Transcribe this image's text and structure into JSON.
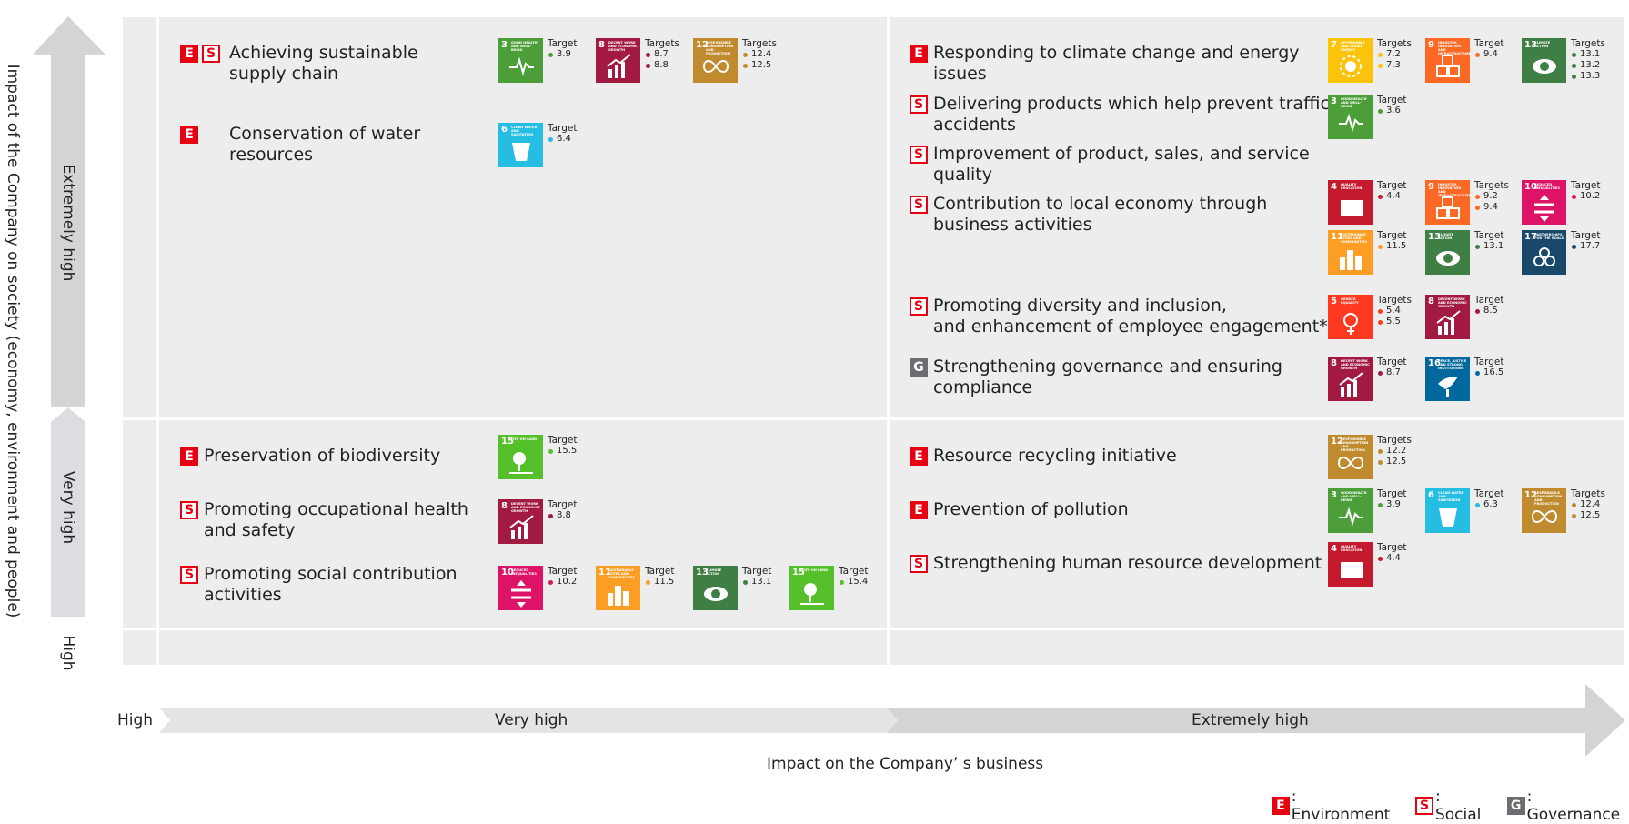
{
  "y_axis": {
    "title": "Impact of the Company on society (economy, environment and people)",
    "levels": [
      "Extremely high",
      "Very high",
      "High"
    ]
  },
  "x_axis": {
    "title": "Impact on the Company’ s business",
    "levels": [
      "High",
      "Very high",
      "Extremely high"
    ]
  },
  "legend": [
    {
      "code": "E",
      "label": ": Environment"
    },
    {
      "code": "S",
      "label": ": Social"
    },
    {
      "code": "G",
      "label": ": Governance"
    }
  ],
  "sdg_colors": {
    "3": "#4c9f38",
    "4": "#c5192d",
    "5": "#ff3a21",
    "6": "#26bde2",
    "7": "#fcc30b",
    "8": "#a21942",
    "9": "#fd6925",
    "10": "#dd1367",
    "11": "#fd9d24",
    "12": "#bf8b2e",
    "13": "#3f7e44",
    "15": "#56c02b",
    "16": "#00689d",
    "17": "#19486a"
  },
  "sdg_titles": {
    "3": "Good health and well-being",
    "4": "Quality education",
    "5": "Gender equality",
    "6": "Clean water and sanitation",
    "7": "Affordable and clean energy",
    "8": "Decent work and economic growth",
    "9": "Industry, innovation and infrastructure",
    "10": "Reduced inequalities",
    "11": "Sustainable cities and communities",
    "12": "Responsible consumption and production",
    "13": "Climate action",
    "15": "Life on land",
    "16": "Peace, justice and strong institutions",
    "17": "Partnerships for the goals"
  },
  "items": [
    {
      "codes": [
        "E",
        "S"
      ],
      "label": "Achieving sustainable\nsupply chain",
      "sdgs": [
        {
          "goal": "3",
          "head": "Target",
          "targets": [
            "3.9"
          ]
        },
        {
          "goal": "8",
          "head": "Targets",
          "targets": [
            "8.7",
            "8.8"
          ]
        },
        {
          "goal": "12",
          "head": "Targets",
          "targets": [
            "12.4",
            "12.5"
          ]
        }
      ]
    },
    {
      "codes": [
        "E"
      ],
      "label": "Conservation of water\nresources",
      "sdgs": [
        {
          "goal": "6",
          "head": "Target",
          "targets": [
            "6.4"
          ]
        }
      ]
    },
    {
      "codes": [
        "E"
      ],
      "label": "Responding to climate change and energy\nissues",
      "sdgs": [
        {
          "goal": "7",
          "head": "Targets",
          "targets": [
            "7.2",
            "7.3"
          ]
        },
        {
          "goal": "9",
          "head": "Target",
          "targets": [
            "9.4"
          ]
        },
        {
          "goal": "13",
          "head": "Targets",
          "targets": [
            "13.1",
            "13.2",
            "13.3"
          ]
        }
      ]
    },
    {
      "codes": [
        "S"
      ],
      "label": "Delivering products which help prevent traffic\naccidents",
      "sdgs": [
        {
          "goal": "3",
          "head": "Target",
          "targets": [
            "3.6"
          ]
        }
      ]
    },
    {
      "codes": [
        "S"
      ],
      "label": "Improvement of product, sales, and service\nquality",
      "sdgs": []
    },
    {
      "codes": [
        "S"
      ],
      "label": "Contribution to local economy through\nbusiness activities",
      "sdgs": [
        {
          "goal": "4",
          "head": "Target",
          "targets": [
            "4.4"
          ]
        },
        {
          "goal": "9",
          "head": "Targets",
          "targets": [
            "9.2",
            "9.4"
          ]
        },
        {
          "goal": "10",
          "head": "Target",
          "targets": [
            "10.2"
          ]
        },
        {
          "goal": "11",
          "head": "Target",
          "targets": [
            "11.5"
          ]
        },
        {
          "goal": "13",
          "head": "Target",
          "targets": [
            "13.1"
          ]
        },
        {
          "goal": "17",
          "head": "Target",
          "targets": [
            "17.7"
          ]
        }
      ]
    },
    {
      "codes": [
        "S"
      ],
      "label": "Promoting diversity and inclusion,\nand enhancement of employee engagement*",
      "sdgs": [
        {
          "goal": "5",
          "head": "Targets",
          "targets": [
            "5.4",
            "5.5"
          ]
        },
        {
          "goal": "8",
          "head": "Target",
          "targets": [
            "8.5"
          ]
        }
      ]
    },
    {
      "codes": [
        "G"
      ],
      "label": "Strengthening governance and ensuring\ncompliance",
      "sdgs": [
        {
          "goal": "8",
          "head": "Target",
          "targets": [
            "8.7"
          ]
        },
        {
          "goal": "16",
          "head": "Target",
          "targets": [
            "16.5"
          ]
        }
      ]
    },
    {
      "codes": [
        "E"
      ],
      "label": "Preservation of biodiversity",
      "sdgs": [
        {
          "goal": "15",
          "head": "Target",
          "targets": [
            "15.5"
          ]
        }
      ]
    },
    {
      "codes": [
        "S"
      ],
      "label": "Promoting occupational health\nand safety",
      "sdgs": [
        {
          "goal": "8",
          "head": "Target",
          "targets": [
            "8.8"
          ]
        }
      ]
    },
    {
      "codes": [
        "S"
      ],
      "label": "Promoting social contribution\nactivities",
      "sdgs": [
        {
          "goal": "10",
          "head": "Target",
          "targets": [
            "10.2"
          ]
        },
        {
          "goal": "11",
          "head": "Target",
          "targets": [
            "11.5"
          ]
        },
        {
          "goal": "13",
          "head": "Target",
          "targets": [
            "13.1"
          ]
        },
        {
          "goal": "15",
          "head": "Target",
          "targets": [
            "15.4"
          ]
        }
      ]
    },
    {
      "codes": [
        "E"
      ],
      "label": "Resource recycling initiative",
      "sdgs": [
        {
          "goal": "12",
          "head": "Targets",
          "targets": [
            "12.2",
            "12.5"
          ]
        }
      ]
    },
    {
      "codes": [
        "E"
      ],
      "label": "Prevention of pollution",
      "sdgs": [
        {
          "goal": "3",
          "head": "Target",
          "targets": [
            "3.9"
          ]
        },
        {
          "goal": "6",
          "head": "Target",
          "targets": [
            "6.3"
          ]
        },
        {
          "goal": "12",
          "head": "Targets",
          "targets": [
            "12.4",
            "12.5"
          ]
        }
      ]
    },
    {
      "codes": [
        "S"
      ],
      "label": "Strengthening human resource development",
      "sdgs": [
        {
          "goal": "4",
          "head": "Target",
          "targets": [
            "4.4"
          ]
        }
      ]
    }
  ]
}
